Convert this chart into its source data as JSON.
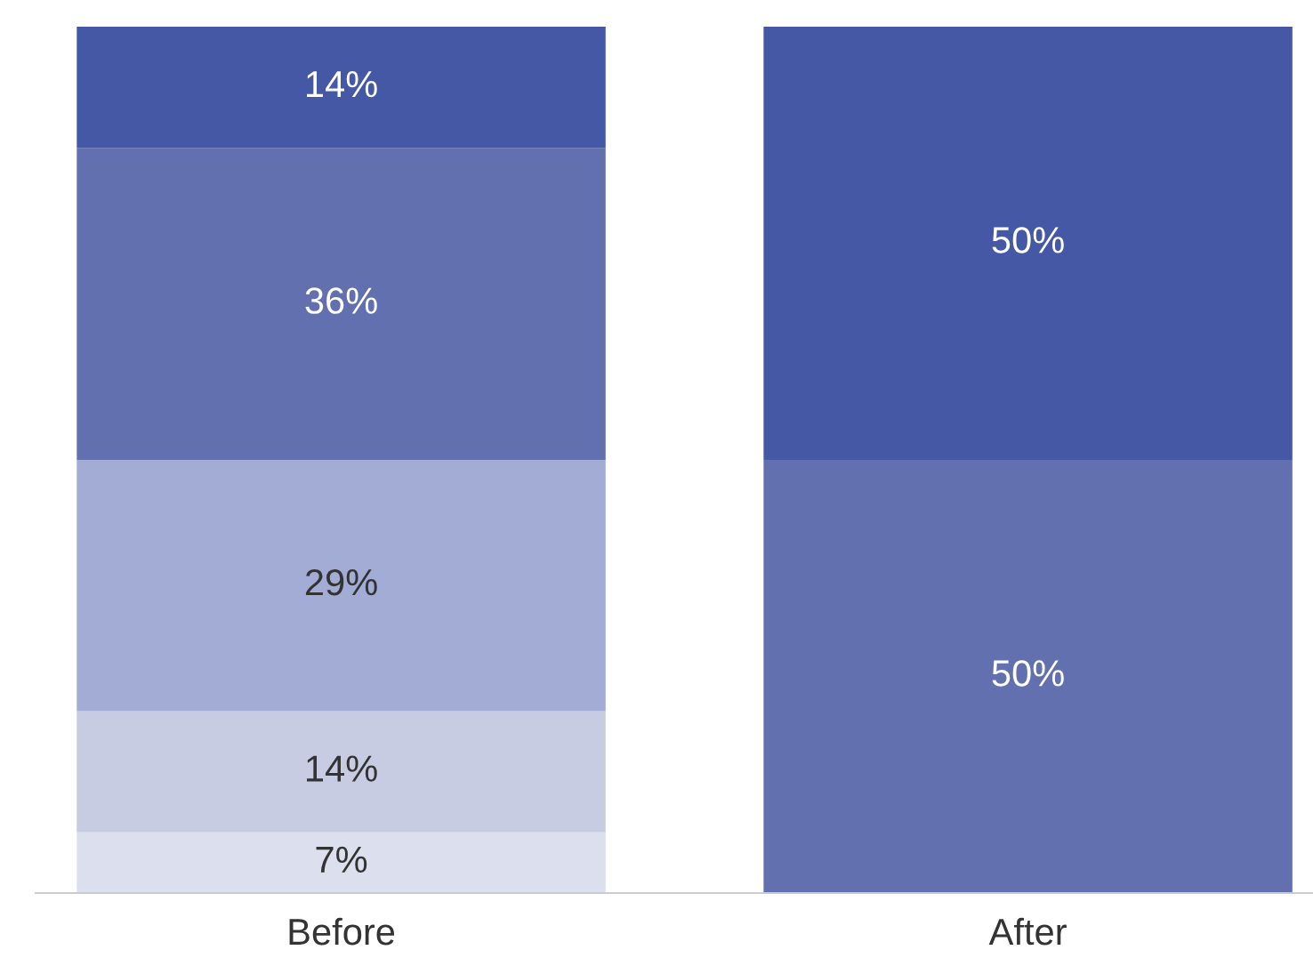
{
  "chart_data": {
    "type": "bar",
    "stacked": true,
    "categories": [
      "Before",
      "After"
    ],
    "series": [
      {
        "color": "#dcdfee",
        "values": [
          7,
          null
        ],
        "value_labels": [
          "7%",
          null
        ]
      },
      {
        "color": "#c8cce3",
        "values": [
          14,
          null
        ],
        "value_labels": [
          "14%",
          null
        ]
      },
      {
        "color": "#a3acd4",
        "values": [
          29,
          null
        ],
        "value_labels": [
          "29%",
          null
        ]
      },
      {
        "color": "#6370b0",
        "values": [
          36,
          50
        ],
        "value_labels": [
          "36%",
          "50%"
        ]
      },
      {
        "color": "#4558a6",
        "values": [
          14,
          50
        ],
        "value_labels": [
          "14%",
          "50%"
        ]
      }
    ],
    "ylim": [
      0,
      100
    ],
    "tick_labels": "x",
    "grid": false,
    "legend": false
  }
}
